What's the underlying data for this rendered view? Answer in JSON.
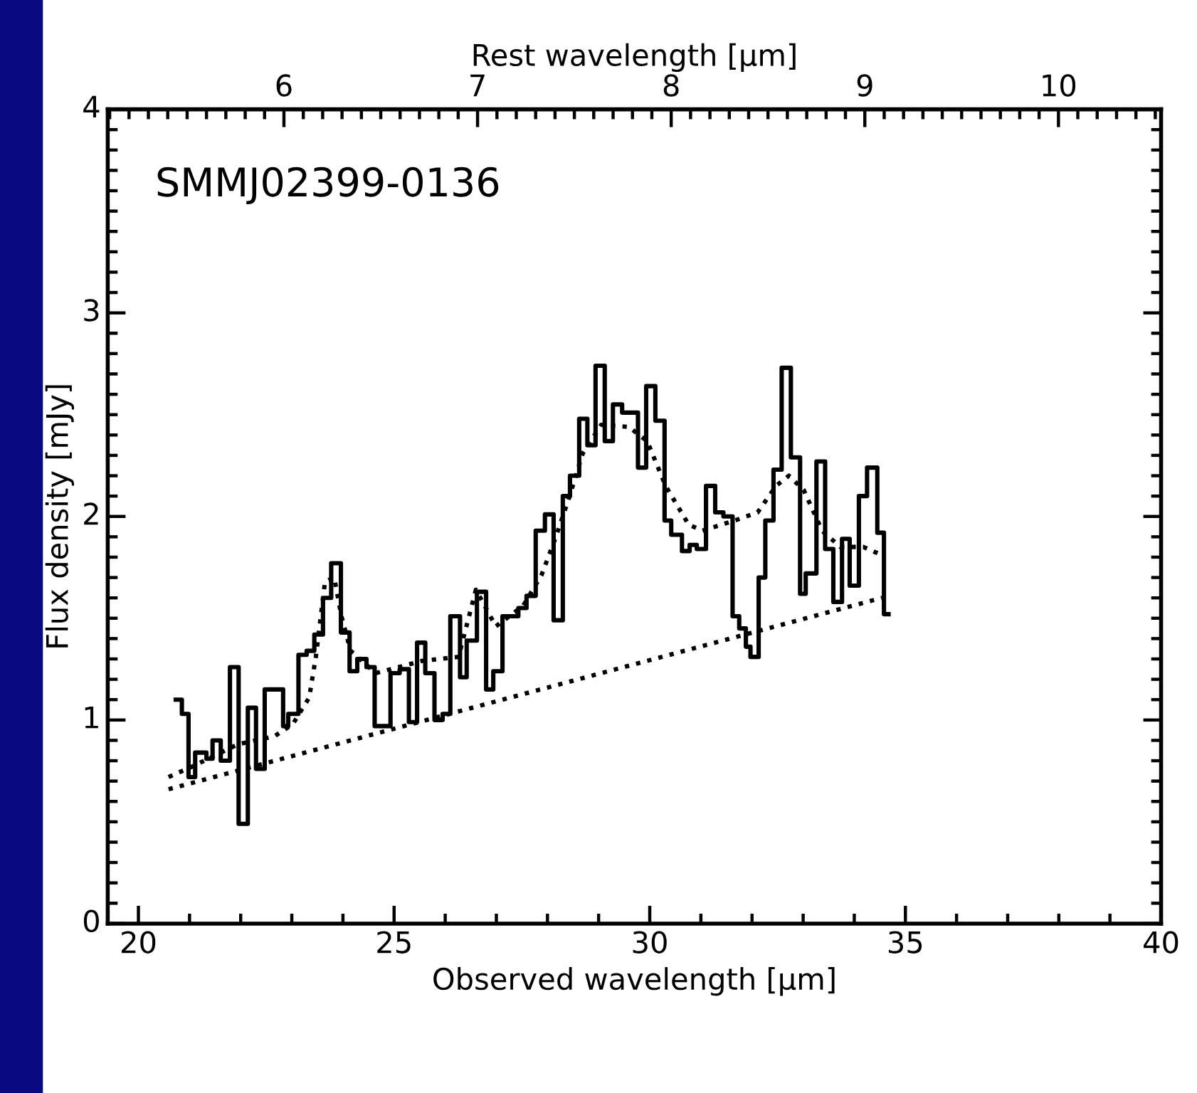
{
  "chart_data": {
    "type": "step",
    "xlabel": "Observed wavelength [μm]",
    "ylabel": "Flux density [mJy]",
    "x2label": "Rest wavelength [μm]",
    "annotations": [
      "SMMJ02399-0136"
    ],
    "xlim": [
      19.4,
      40
    ],
    "xticks": [
      20,
      25,
      30,
      35,
      40
    ],
    "ylim": [
      0,
      4
    ],
    "yticks": [
      0,
      1,
      2,
      3,
      4
    ],
    "x2lim": [
      5.09,
      10.53
    ],
    "x2ticks": [
      6,
      7,
      8,
      9,
      10
    ],
    "grid": false,
    "legend": false,
    "series": [
      {
        "color": "#000000",
        "line_style": "solid",
        "x": [
          20.73,
          20.85,
          20.98,
          21.11,
          21.33,
          21.45,
          21.61,
          21.79,
          21.96,
          22.14,
          22.3,
          22.47,
          22.83,
          22.93,
          23.13,
          23.29,
          23.44,
          23.61,
          23.77,
          23.96,
          24.13,
          24.28,
          24.46,
          24.62,
          24.93,
          25.11,
          25.29,
          25.45,
          25.61,
          25.79,
          25.95,
          26.1,
          26.29,
          26.42,
          26.62,
          26.8,
          26.94,
          27.12,
          27.43,
          27.59,
          27.77,
          27.95,
          28.12,
          28.3,
          28.44,
          28.62,
          28.78,
          28.94,
          29.12,
          29.28,
          29.46,
          29.77,
          29.93,
          30.11,
          30.29,
          30.42,
          30.63,
          30.78,
          30.92,
          31.1,
          31.28,
          31.44,
          31.62,
          31.75,
          31.88,
          31.97,
          32.13,
          32.26,
          32.42,
          32.58,
          32.76,
          32.94,
          33.05,
          33.26,
          33.43,
          33.59,
          33.76,
          33.91,
          34.09,
          34.25,
          34.45,
          34.58,
          34.67
        ],
        "values": [
          1.1,
          1.03,
          0.72,
          0.84,
          0.81,
          0.9,
          0.8,
          1.26,
          0.49,
          1.06,
          0.76,
          1.15,
          0.97,
          1.03,
          1.32,
          1.34,
          1.42,
          1.6,
          1.77,
          1.43,
          1.24,
          1.3,
          1.26,
          0.97,
          1.23,
          1.25,
          0.99,
          1.38,
          1.23,
          1.0,
          1.03,
          1.51,
          1.21,
          1.39,
          1.63,
          1.15,
          1.24,
          1.51,
          1.55,
          1.61,
          1.93,
          2.01,
          1.49,
          2.1,
          2.2,
          2.48,
          2.35,
          2.74,
          2.37,
          2.55,
          2.51,
          2.24,
          2.64,
          2.47,
          1.98,
          1.91,
          1.83,
          1.86,
          1.84,
          2.15,
          2.02,
          2.0,
          1.51,
          1.45,
          1.36,
          1.31,
          1.7,
          1.98,
          2.23,
          2.73,
          2.29,
          1.62,
          1.72,
          2.27,
          1.84,
          1.58,
          1.89,
          1.66,
          2.1,
          2.24,
          1.92,
          1.52,
          1.52
        ]
      },
      {
        "type": "line",
        "color": "#000000",
        "line_style": "dotted",
        "x": [
          20.59,
          21.04,
          21.94,
          22.66,
          23.02,
          23.34,
          23.47,
          23.65,
          23.83,
          23.97,
          24.15,
          24.64,
          25.54,
          26.26,
          26.6,
          26.99,
          27.52,
          27.88,
          28.15,
          28.42,
          28.69,
          29.05,
          29.59,
          29.95,
          30.31,
          30.76,
          31.03,
          31.66,
          32.11,
          32.47,
          32.72,
          33.01,
          33.37,
          33.73,
          34.18,
          34.54
        ],
        "values": [
          0.72,
          0.77,
          0.88,
          0.92,
          0.98,
          1.11,
          1.31,
          1.68,
          1.7,
          1.51,
          1.34,
          1.23,
          1.29,
          1.31,
          1.64,
          1.46,
          1.56,
          1.71,
          1.89,
          2.09,
          2.31,
          2.45,
          2.44,
          2.37,
          2.15,
          1.96,
          1.93,
          1.98,
          2.02,
          2.15,
          2.2,
          2.13,
          1.93,
          1.85,
          1.85,
          1.81
        ]
      },
      {
        "type": "line",
        "color": "#000000",
        "line_style": "dotted",
        "x": [
          20.59,
          34.54
        ],
        "values": [
          0.66,
          1.6
        ]
      }
    ]
  }
}
